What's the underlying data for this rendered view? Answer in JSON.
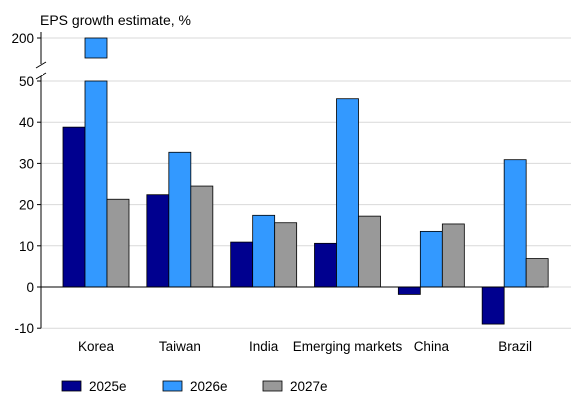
{
  "chart_data": {
    "type": "bar",
    "title": "EPS growth estimate, %",
    "xlabel": "",
    "ylabel": "",
    "categories": [
      "Korea",
      "Taiwan",
      "India",
      "Emerging markets",
      "China",
      "Brazil"
    ],
    "series": [
      {
        "name": "2025e",
        "color": "#00008f",
        "values": [
          38.8,
          22.4,
          10.9,
          10.6,
          -1.8,
          -9.0
        ]
      },
      {
        "name": "2026e",
        "color": "#3399ff",
        "values": [
          200,
          32.7,
          17.4,
          45.7,
          13.5,
          30.9
        ]
      },
      {
        "name": "2027e",
        "color": "#999999",
        "values": [
          21.3,
          24.5,
          15.6,
          17.2,
          15.3,
          6.9
        ]
      }
    ],
    "ylim": [
      -10,
      50
    ],
    "yticks": [
      -10,
      0,
      10,
      20,
      30,
      40,
      50
    ],
    "axis_break": {
      "upper_tick": 200,
      "note": "axis break between 50 and 200"
    },
    "grid": true,
    "legend_position": "bottom-left"
  }
}
